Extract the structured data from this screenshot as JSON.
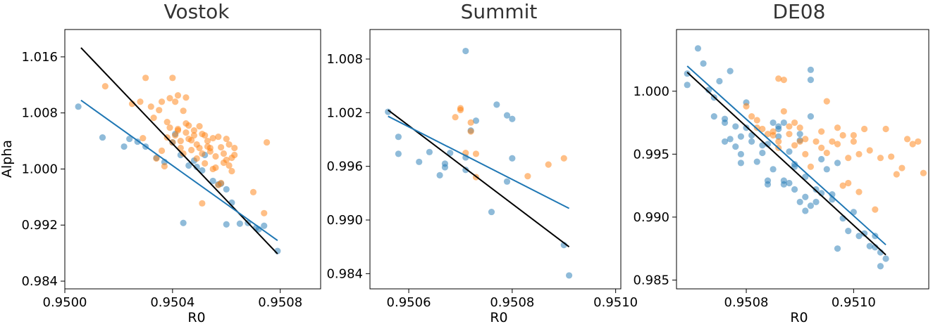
{
  "chart_data": [
    {
      "type": "scatter",
      "title": "Vostok",
      "xlabel": "R0",
      "ylabel": "Alpha",
      "xlim": [
        0.95,
        0.95095
      ],
      "ylim": [
        0.9829,
        1.0199
      ],
      "xticks": [
        0.95,
        0.9504,
        0.9508
      ],
      "xtick_labels": [
        "0.9500",
        "0.9504",
        "0.9508"
      ],
      "yticks": [
        0.984,
        0.992,
        1.0,
        1.008,
        1.016
      ],
      "ytick_labels": [
        "0.984",
        "0.992",
        "1.000",
        "1.008",
        "1.016"
      ],
      "series": [
        {
          "color": "#1f77b4",
          "x": [
            0.95005,
            0.95014,
            0.95022,
            0.95024,
            0.95027,
            0.9503,
            0.95034,
            0.95037,
            0.9504,
            0.95041,
            0.95043,
            0.95046,
            0.95048,
            0.95049,
            0.95051,
            0.95052,
            0.95055,
            0.95057,
            0.95058,
            0.9506,
            0.9506,
            0.95062,
            0.95065,
            0.95068,
            0.95071,
            0.95072,
            0.95074,
            0.95079,
            0.95044
          ],
          "y": [
            1.0089,
            1.0045,
            1.0032,
            1.0043,
            1.0039,
            1.0032,
            1.0016,
            1.001,
            1.0038,
            1.005,
            1.002,
            1.0005,
            1.0012,
            1.0003,
            0.9998,
            1.002,
            0.9983,
            0.9978,
            0.9979,
            0.9971,
            0.9921,
            0.9952,
            0.9922,
            0.9923,
            0.9916,
            0.9914,
            0.9919,
            0.9883,
            0.9923
          ]
        },
        {
          "color": "#ff7f0e",
          "x": [
            0.95015,
            0.95025,
            0.95028,
            0.9503,
            0.95032,
            0.95033,
            0.95035,
            0.95036,
            0.95038,
            0.95039,
            0.9504,
            0.95041,
            0.95042,
            0.95043,
            0.95044,
            0.95045,
            0.95046,
            0.95047,
            0.95048,
            0.95049,
            0.9505,
            0.95051,
            0.95052,
            0.95053,
            0.95054,
            0.95055,
            0.95056,
            0.95057,
            0.95058,
            0.95059,
            0.9506,
            0.95061,
            0.95062,
            0.95063,
            0.9507,
            0.95074,
            0.95029,
            0.95034,
            0.95036,
            0.95037,
            0.95038,
            0.95039,
            0.9504,
            0.95041,
            0.95042,
            0.95043,
            0.95044,
            0.95045,
            0.95046,
            0.95047,
            0.95048,
            0.95049,
            0.9505,
            0.95051,
            0.95052,
            0.95053,
            0.95054,
            0.95055,
            0.95056,
            0.95057,
            0.95058,
            0.95059,
            0.9506,
            0.95061,
            0.95062,
            0.95063,
            0.95051,
            0.95075,
            0.95042,
            0.95045
          ],
          "y": [
            1.0118,
            1.0093,
            1.0096,
            1.013,
            1.0089,
            1.0073,
            1.0084,
            1.0096,
            1.0067,
            1.0101,
            1.013,
            1.0096,
            1.0055,
            1.004,
            1.0083,
            1.0065,
            1.0062,
            1.0041,
            1.0048,
            1.0035,
            1.0061,
            1.0022,
            1.0048,
            1.0032,
            1.003,
            1.0044,
            1.0018,
            1.0046,
            1.0031,
            1.0022,
            1.0043,
            1.0035,
            0.9997,
            1.002,
            0.9967,
            0.9937,
            1.0044,
            1.0015,
            1.0026,
            1.0004,
            1.0045,
            1.0059,
            1.0038,
            1.0048,
            1.0057,
            1.003,
            1.0022,
            1.0052,
            1.0043,
            1.0027,
            1.0055,
            1.0015,
            1.003,
            1.005,
            1.0008,
            1.004,
            1.0025,
            1.0,
            1.0002,
            0.9977,
            0.998,
            1.0009,
            1.0013,
            1.0005,
            1.0016,
            1.003,
            0.9951,
            1.0038,
            1.0105,
            1.0102
          ]
        }
      ],
      "fits": [
        {
          "color": "#000000",
          "x": [
            0.95006,
            0.95079
          ],
          "y": [
            1.0173,
            0.9879
          ]
        },
        {
          "color": "#1f77b4",
          "x": [
            0.95006,
            0.95079
          ],
          "y": [
            1.0098,
            0.9898
          ]
        }
      ]
    },
    {
      "type": "scatter",
      "title": "Summit",
      "xlabel": "R0",
      "ylabel": "",
      "xlim": [
        0.950525,
        0.95101
      ],
      "ylim": [
        0.9823,
        1.0113
      ],
      "xticks": [
        0.9506,
        0.9508,
        0.951
      ],
      "xtick_labels": [
        "0.9506",
        "0.9508",
        "0.9510"
      ],
      "yticks": [
        0.984,
        0.99,
        0.996,
        1.002,
        1.008
      ],
      "ytick_labels": [
        "0.984",
        "0.990",
        "0.996",
        "1.002",
        "1.008"
      ],
      "series": [
        {
          "color": "#1f77b4",
          "x": [
            0.95056,
            0.95058,
            0.95058,
            0.95062,
            0.95064,
            0.95066,
            0.95067,
            0.95067,
            0.95068,
            0.95071,
            0.95071,
            0.95071,
            0.95072,
            0.95073,
            0.95076,
            0.95077,
            0.95079,
            0.95079,
            0.9508,
            0.9508,
            0.9509,
            0.95091
          ],
          "y": [
            1.0021,
            0.9993,
            0.9974,
            0.9965,
            0.9976,
            0.995,
            0.9963,
            0.9959,
            0.9975,
            0.997,
            0.9956,
            1.0089,
            1.0,
            1.0011,
            0.9909,
            1.0029,
            0.9943,
            1.0017,
            1.0013,
            0.9969,
            0.9872,
            0.9838
          ]
        },
        {
          "color": "#ff7f0e",
          "x": [
            0.95069,
            0.9507,
            0.9507,
            0.95071,
            0.95072,
            0.95072,
            0.95073,
            0.95073,
            0.95083,
            0.95087,
            0.9509
          ],
          "y": [
            1.0015,
            1.0025,
            1.0023,
            0.9975,
            1.0009,
            0.9999,
            0.9974,
            0.9948,
            0.9949,
            0.9962,
            0.9969
          ]
        }
      ],
      "fits": [
        {
          "color": "#000000",
          "x": [
            0.95056,
            0.95091
          ],
          "y": [
            1.0023,
            0.987
          ]
        },
        {
          "color": "#1f77b4",
          "x": [
            0.95056,
            0.95091
          ],
          "y": [
            1.0016,
            0.9913
          ]
        }
      ]
    },
    {
      "type": "scatter",
      "title": "DE08",
      "xlabel": "R0",
      "ylabel": "",
      "xlim": [
        0.95067,
        0.95114
      ],
      "ylim": [
        0.9843,
        1.0049
      ],
      "xticks": [
        0.9508,
        0.951
      ],
      "xtick_labels": [
        "0.9508",
        "0.9510"
      ],
      "yticks": [
        0.985,
        0.99,
        0.995,
        1.0
      ],
      "ytick_labels": [
        "0.985",
        "0.990",
        "0.995",
        "1.000"
      ],
      "series": [
        {
          "color": "#1f77b4",
          "x": [
            0.95069,
            0.95069,
            0.95071,
            0.95072,
            0.95073,
            0.95074,
            0.95074,
            0.95075,
            0.95076,
            0.95076,
            0.95076,
            0.95077,
            0.95077,
            0.95078,
            0.95078,
            0.95079,
            0.95079,
            0.95079,
            0.9508,
            0.9508,
            0.95081,
            0.95081,
            0.95082,
            0.95083,
            0.95083,
            0.95084,
            0.95084,
            0.95084,
            0.95085,
            0.95085,
            0.95086,
            0.95086,
            0.95087,
            0.95087,
            0.95087,
            0.95088,
            0.95088,
            0.95089,
            0.95089,
            0.95089,
            0.9509,
            0.9509,
            0.95091,
            0.95091,
            0.95091,
            0.95092,
            0.95092,
            0.95092,
            0.95093,
            0.95093,
            0.95094,
            0.95094,
            0.95095,
            0.95096,
            0.95096,
            0.95097,
            0.95097,
            0.95098,
            0.95099,
            0.951,
            0.95101,
            0.95102,
            0.95103,
            0.95104,
            0.95104,
            0.95105,
            0.95105,
            0.95106,
            0.95092,
            0.9509,
            0.95086
          ],
          "y": [
            1.0014,
            1.0005,
            1.0034,
            1.0022,
            1.0001,
            0.9995,
            0.998,
            1.0008,
            0.9975,
            0.9978,
            0.996,
            1.0016,
            0.9962,
            0.9972,
            0.9956,
            0.995,
            0.9964,
            0.9943,
            0.9991,
            0.9971,
            0.996,
            0.9965,
            0.9944,
            0.9951,
            0.9957,
            0.9958,
            0.9929,
            0.9926,
            0.9975,
            0.9938,
            0.997,
            0.9964,
            0.9929,
            0.9926,
            0.9975,
            0.9952,
            0.9927,
            0.994,
            0.9942,
            0.9922,
            0.9966,
            0.9961,
            0.9932,
            0.9916,
            0.9905,
            1.0017,
            1.0009,
            0.9909,
            0.9922,
            0.9912,
            0.9946,
            0.9919,
            0.9938,
            0.9918,
            0.9914,
            0.9943,
            0.9875,
            0.9899,
            0.9889,
            0.9904,
            0.9885,
            0.9887,
            0.9877,
            0.9876,
            0.9885,
            0.9861,
            0.9872,
            0.9867,
            0.998,
            0.9912,
            0.9972
          ]
        },
        {
          "color": "#ff7f0e",
          "x": [
            0.9508,
            0.95081,
            0.95082,
            0.95082,
            0.95083,
            0.95084,
            0.95085,
            0.95085,
            0.95086,
            0.95086,
            0.95087,
            0.95088,
            0.95088,
            0.95089,
            0.95089,
            0.9509,
            0.9509,
            0.95091,
            0.95091,
            0.95092,
            0.95093,
            0.95094,
            0.95094,
            0.95095,
            0.95095,
            0.95096,
            0.95097,
            0.95097,
            0.95098,
            0.95098,
            0.95099,
            0.95099,
            0.951,
            0.951,
            0.95101,
            0.95101,
            0.95102,
            0.95103,
            0.95104,
            0.95105,
            0.95106,
            0.95107,
            0.95108,
            0.95109,
            0.9511,
            0.95111,
            0.95112,
            0.95113,
            0.95086,
            0.95087
          ],
          "y": [
            0.9988,
            0.998,
            0.9977,
            0.9971,
            0.997,
            0.9966,
            0.9965,
            0.9968,
            0.9955,
            0.996,
            0.9984,
            0.9972,
            0.9966,
            0.9957,
            0.9975,
            0.9971,
            0.996,
            0.9962,
            0.995,
            0.994,
            0.996,
            0.9968,
            0.9955,
            0.9992,
            0.9951,
            0.996,
            0.9958,
            0.9971,
            0.9965,
            0.9925,
            0.9927,
            0.9947,
            0.996,
            0.9965,
            0.995,
            0.992,
            0.997,
            0.9953,
            0.9906,
            0.9947,
            0.997,
            0.9948,
            0.9934,
            0.9939,
            0.9962,
            0.9958,
            0.996,
            0.9935,
            1.001,
            1.0009
          ]
        }
      ],
      "fits": [
        {
          "color": "#000000",
          "x": [
            0.95069,
            0.95106
          ],
          "y": [
            1.0015,
            0.987
          ]
        },
        {
          "color": "#1f77b4",
          "x": [
            0.95069,
            0.95106
          ],
          "y": [
            1.002,
            0.9878
          ]
        }
      ]
    }
  ]
}
